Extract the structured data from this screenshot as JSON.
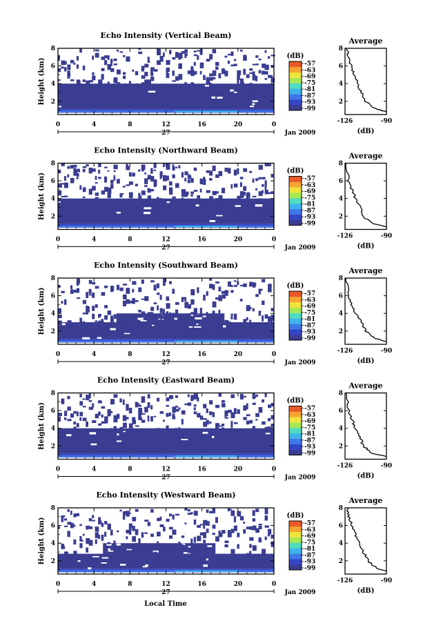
{
  "figure": {
    "xlabel": "Local Time",
    "date_label": "Jan 2009",
    "day_label": "27",
    "colorbar_unit": "(dB)",
    "avg_title": "Average",
    "avg_xlabel": "(dB)"
  },
  "colors": {
    "scale": [
      "#3a3d91",
      "#3346c8",
      "#3e78e6",
      "#3fb4ea",
      "#4fdcc0",
      "#a8e855",
      "#f0e43c",
      "#f5a532",
      "#ea5a28"
    ]
  },
  "chart_data": [
    {
      "type": "heatmap",
      "title": "Echo Intensity (Vertical Beam)",
      "ylabel": "Height (km)",
      "xlim": [
        0,
        24
      ],
      "ylim": [
        0.5,
        8
      ],
      "xticks": [
        "0",
        "4",
        "8",
        "12",
        "16",
        "20",
        "0"
      ],
      "yticks": [
        "2",
        "4",
        "6",
        "8"
      ],
      "colorbar": {
        "unit": "(dB)",
        "ticks": [
          "-57",
          "-63",
          "-69",
          "-75",
          "-81",
          "-87",
          "-93",
          "-99"
        ]
      },
      "layers": [
        {
          "x": [
            0,
            24
          ],
          "y": [
            0.7,
            1.1
          ],
          "level": "-95 to -87"
        },
        {
          "x": [
            0,
            24
          ],
          "y": [
            1.1,
            4.0
          ],
          "level": "-99"
        },
        {
          "x": [
            0,
            24
          ],
          "y": [
            4.0,
            8.0
          ],
          "level": "-99 (sparse)"
        }
      ],
      "average": {
        "title": "Average",
        "xlabel": "(dB)",
        "xticks": [
          "-126",
          "-90"
        ],
        "xlim": [
          -126,
          -90
        ],
        "ylim": [
          0.5,
          8
        ],
        "profile": [
          [
            -124,
            8.0
          ],
          [
            -123,
            7.0
          ],
          [
            -121,
            6.0
          ],
          [
            -118,
            5.0
          ],
          [
            -115,
            4.0
          ],
          [
            -112,
            3.0
          ],
          [
            -108,
            2.0
          ],
          [
            -100,
            1.2
          ],
          [
            -90,
            0.8
          ]
        ]
      }
    },
    {
      "type": "heatmap",
      "title": "Echo Intensity (Northward Beam)",
      "ylabel": "Height (km)",
      "xlim": [
        0,
        24
      ],
      "ylim": [
        0.5,
        8
      ],
      "xticks": [
        "0",
        "4",
        "8",
        "12",
        "16",
        "20",
        "0"
      ],
      "yticks": [
        "2",
        "4",
        "6",
        "8"
      ],
      "colorbar": {
        "unit": "(dB)",
        "ticks": [
          "-57",
          "-63",
          "-69",
          "-75",
          "-81",
          "-87",
          "-93",
          "-99"
        ]
      },
      "layers": [
        {
          "x": [
            0,
            24
          ],
          "y": [
            0.7,
            1.1
          ],
          "level": "-95 to -87"
        },
        {
          "x": [
            0,
            24
          ],
          "y": [
            1.1,
            4.0
          ],
          "level": "-99"
        },
        {
          "x": [
            0,
            24
          ],
          "y": [
            4.0,
            8.0
          ],
          "level": "-99 (sparse)"
        }
      ],
      "average": {
        "title": "Average",
        "xlabel": "(dB)",
        "xticks": [
          "-126",
          "-90"
        ],
        "xlim": [
          -126,
          -90
        ],
        "ylim": [
          0.5,
          8
        ],
        "profile": [
          [
            -125,
            8.0
          ],
          [
            -123,
            6.0
          ],
          [
            -120,
            5.0
          ],
          [
            -117,
            4.0
          ],
          [
            -113,
            3.0
          ],
          [
            -110,
            2.0
          ],
          [
            -103,
            1.2
          ],
          [
            -90,
            0.8
          ]
        ]
      }
    },
    {
      "type": "heatmap",
      "title": "Echo Intensity (Southward Beam)",
      "ylabel": "Height (km)",
      "xlim": [
        0,
        24
      ],
      "ylim": [
        0.5,
        8
      ],
      "xticks": [
        "0",
        "4",
        "8",
        "12",
        "16",
        "20",
        "0"
      ],
      "yticks": [
        "2",
        "4",
        "6",
        "8"
      ],
      "colorbar": {
        "unit": "(dB)",
        "ticks": [
          "-57",
          "-63",
          "-69",
          "-75",
          "-81",
          "-87",
          "-93",
          "-99"
        ]
      },
      "layers": [
        {
          "x": [
            0,
            24
          ],
          "y": [
            0.7,
            1.1
          ],
          "level": "-95 to -87"
        },
        {
          "x": [
            0,
            24
          ],
          "y": [
            1.1,
            3.0
          ],
          "level": "-99"
        },
        {
          "x": [
            6.5,
            18.5
          ],
          "y": [
            3.0,
            4.0
          ],
          "level": "-99"
        },
        {
          "x": [
            0,
            24
          ],
          "y": [
            3.0,
            8.0
          ],
          "level": "-99 (sparse)"
        }
      ],
      "average": {
        "title": "Average",
        "xlabel": "(dB)",
        "xticks": [
          "-126",
          "-90"
        ],
        "xlim": [
          -126,
          -90
        ],
        "ylim": [
          0.5,
          8
        ],
        "profile": [
          [
            -125,
            8.0
          ],
          [
            -123,
            6.0
          ],
          [
            -120,
            5.0
          ],
          [
            -117,
            4.0
          ],
          [
            -112,
            3.0
          ],
          [
            -108,
            2.0
          ],
          [
            -100,
            1.2
          ],
          [
            -90,
            0.8
          ]
        ]
      }
    },
    {
      "type": "heatmap",
      "title": "Echo Intensity (Eastward Beam)",
      "ylabel": "Height (km)",
      "xlim": [
        0,
        24
      ],
      "ylim": [
        0.5,
        8
      ],
      "xticks": [
        "0",
        "4",
        "8",
        "12",
        "16",
        "20",
        "0"
      ],
      "yticks": [
        "2",
        "4",
        "6",
        "8"
      ],
      "colorbar": {
        "unit": "(dB)",
        "ticks": [
          "-57",
          "-63",
          "-69",
          "-75",
          "-81",
          "-87",
          "-93",
          "-99"
        ]
      },
      "layers": [
        {
          "x": [
            0,
            24
          ],
          "y": [
            0.7,
            1.1
          ],
          "level": "-95 to -87"
        },
        {
          "x": [
            0,
            24
          ],
          "y": [
            1.1,
            4.0
          ],
          "level": "-99"
        },
        {
          "x": [
            0,
            24
          ],
          "y": [
            4.0,
            8.0
          ],
          "level": "-99 (sparse)"
        }
      ],
      "average": {
        "title": "Average",
        "xlabel": "(dB)",
        "xticks": [
          "-126",
          "-90"
        ],
        "xlim": [
          -126,
          -90
        ],
        "ylim": [
          0.5,
          8
        ],
        "profile": [
          [
            -125,
            8.0
          ],
          [
            -123,
            6.0
          ],
          [
            -120,
            5.0
          ],
          [
            -117,
            4.0
          ],
          [
            -113,
            3.0
          ],
          [
            -110,
            2.0
          ],
          [
            -103,
            1.2
          ],
          [
            -90,
            0.8
          ]
        ]
      }
    },
    {
      "type": "heatmap",
      "title": "Echo Intensity (Westward Beam)",
      "ylabel": "Height (km)",
      "xlim": [
        0,
        24
      ],
      "ylim": [
        0.5,
        8
      ],
      "xticks": [
        "0",
        "4",
        "8",
        "12",
        "16",
        "20",
        "0"
      ],
      "yticks": [
        "2",
        "4",
        "6",
        "8"
      ],
      "colorbar": {
        "unit": "(dB)",
        "ticks": [
          "-57",
          "-63",
          "-69",
          "-75",
          "-81",
          "-87",
          "-93",
          "-99"
        ]
      },
      "layers": [
        {
          "x": [
            0,
            24
          ],
          "y": [
            0.7,
            1.1
          ],
          "level": "-95 to -87"
        },
        {
          "x": [
            0,
            24
          ],
          "y": [
            1.1,
            2.8
          ],
          "level": "-99"
        },
        {
          "x": [
            5.0,
            17.5
          ],
          "y": [
            2.8,
            4.0
          ],
          "level": "-99"
        },
        {
          "x": [
            0,
            24
          ],
          "y": [
            2.8,
            8.0
          ],
          "level": "-99 (sparse)"
        }
      ],
      "average": {
        "title": "Average",
        "xlabel": "(dB)",
        "xticks": [
          "-126",
          "-90"
        ],
        "xlim": [
          -126,
          -90
        ],
        "ylim": [
          0.5,
          8
        ],
        "profile": [
          [
            -124,
            8.0
          ],
          [
            -123,
            7.0
          ],
          [
            -120,
            6.0
          ],
          [
            -117,
            5.0
          ],
          [
            -113,
            4.0
          ],
          [
            -110,
            3.0
          ],
          [
            -106,
            2.0
          ],
          [
            -99,
            1.2
          ],
          [
            -90,
            0.8
          ]
        ]
      }
    }
  ]
}
